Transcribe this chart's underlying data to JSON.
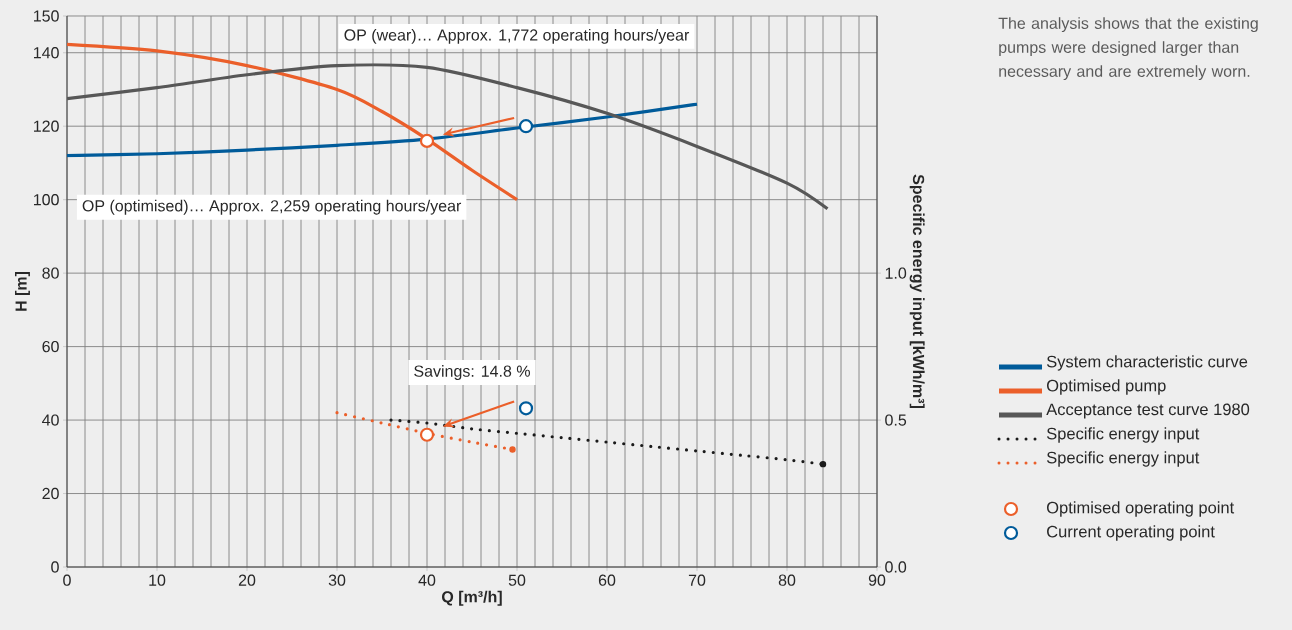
{
  "chart_data": {
    "type": "line",
    "xlabel": "Q [m³/h]",
    "ylabel": "H [m]",
    "y2label": "Specific energy input [kWh/m³]",
    "xlim": [
      0,
      90
    ],
    "xticks": [
      0,
      10,
      20,
      30,
      40,
      50,
      60,
      70,
      80,
      90
    ],
    "ylim": [
      0,
      150
    ],
    "yticks": [
      0,
      20,
      40,
      60,
      80,
      100,
      120,
      140,
      150
    ],
    "y2lim": [
      0,
      1.875
    ],
    "y2ticks": [
      {
        "value": 0,
        "label": "0.0"
      },
      {
        "value": 0.5,
        "label": "0.5"
      },
      {
        "value": 1,
        "label": "1.0"
      }
    ],
    "grid": true,
    "legend": "right",
    "series": [
      {
        "name": "System characteristic curve",
        "color": "#005b9a",
        "x": [
          0,
          10,
          20,
          30,
          40,
          50,
          60,
          70
        ],
        "values": [
          112,
          112.5,
          113.5,
          114.8,
          116.5,
          119.5,
          122.5,
          126
        ]
      },
      {
        "name": "Optimised pump",
        "color": "#eb5f2a",
        "x": [
          0,
          10,
          20,
          30,
          35,
          40,
          45,
          50
        ],
        "values": [
          142.3,
          140.5,
          136.5,
          130,
          124,
          116.5,
          108,
          100
        ]
      },
      {
        "name": "Acceptance test curve 1980",
        "color": "#575757",
        "x": [
          0,
          10,
          20,
          30,
          40,
          50,
          60,
          70,
          80,
          84.5
        ],
        "values": [
          127.5,
          130.5,
          134,
          136.5,
          136,
          130.5,
          123.5,
          114.5,
          104.5,
          97.5
        ]
      },
      {
        "name": "Specific energy input",
        "color": "#1a1a1a",
        "type": "line",
        "line_style": "dotted",
        "axis": "y2",
        "x": [
          36,
          40,
          45,
          50,
          55,
          60,
          65,
          70,
          75,
          80,
          84
        ],
        "values": [
          0.5,
          0.49,
          0.47,
          0.455,
          0.44,
          0.425,
          0.41,
          0.395,
          0.38,
          0.365,
          0.35
        ]
      },
      {
        "name": "Specific energy input",
        "color": "#eb5f2a",
        "type": "line",
        "line_style": "dotted",
        "axis": "y2",
        "x": [
          30,
          35,
          40,
          45,
          49.5
        ],
        "values": [
          0.525,
          0.49,
          0.455,
          0.425,
          0.4
        ]
      },
      {
        "name": "Optimised operating point",
        "color": "#eb5f2a",
        "type": "scatter",
        "marker": "circle",
        "x": [
          40
        ],
        "values": [
          116
        ]
      },
      {
        "name": "Current operating point",
        "color": "#005b9a",
        "type": "scatter",
        "marker": "circle",
        "x": [
          51
        ],
        "values": [
          120
        ]
      },
      {
        "color": "#eb5f2a",
        "type": "scatter",
        "marker": "circle",
        "axis": "y2",
        "x": [
          40
        ],
        "values": [
          0.45
        ]
      },
      {
        "color": "#005b9a",
        "type": "scatter",
        "marker": "circle",
        "axis": "y2",
        "x": [
          51
        ],
        "values": [
          0.54
        ]
      }
    ],
    "annotations": [
      "OP (wear)… Approx. 1,772 operating hours/year",
      "OP (optimised)… Approx. 2,259 operating hours/year",
      "Savings: 14.8 %",
      "The analysis shows that the existing pumps were designed larger than necessary and are extremely worn."
    ]
  }
}
